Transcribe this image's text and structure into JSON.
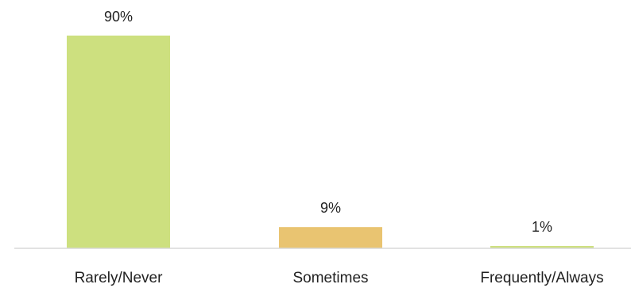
{
  "chart_data": {
    "type": "bar",
    "categories": [
      "Rarely/Never",
      "Sometimes",
      "Frequently/Always"
    ],
    "values": [
      90,
      9,
      1
    ],
    "value_labels": [
      "90%",
      "9%",
      "1%"
    ],
    "colors": [
      "#cde07f",
      "#e9c471",
      "#cde07f"
    ],
    "ylim": [
      0,
      100
    ],
    "grid": false,
    "legend": "none"
  }
}
